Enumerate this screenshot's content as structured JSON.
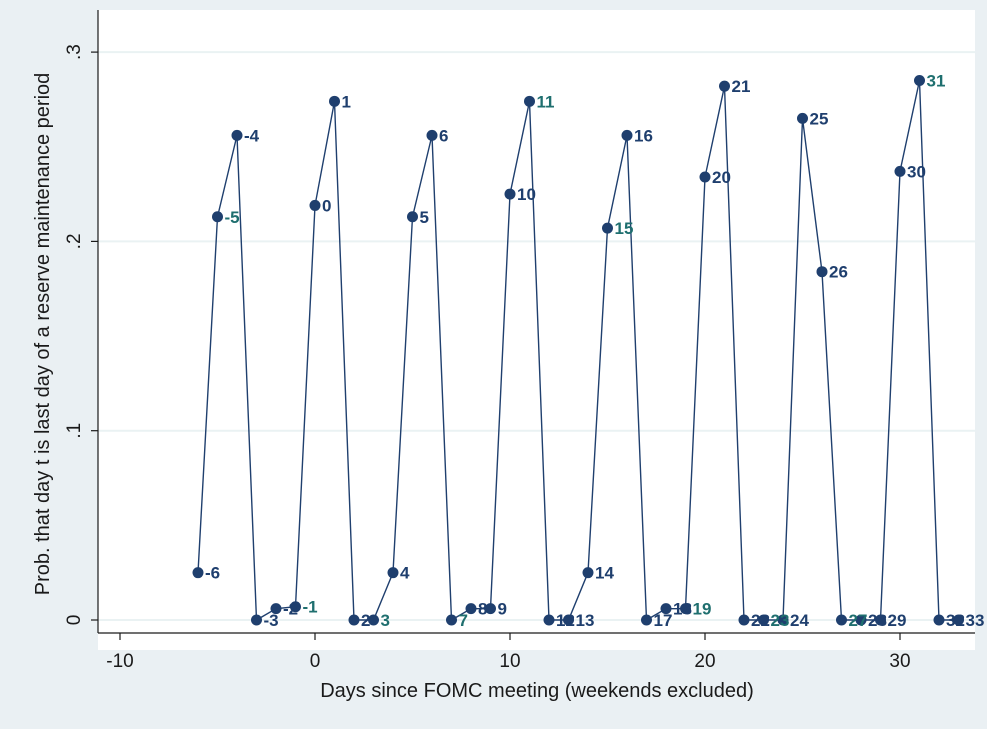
{
  "chart_data": {
    "type": "line",
    "title": "",
    "xlabel": "Days since FOMC meeting (weekends excluded)",
    "ylabel": "Prob. that day t is last day of a reserve maintenance period",
    "xlim": [
      -11,
      34
    ],
    "ylim": [
      -0.005,
      0.3
    ],
    "xticks": [
      -10,
      0,
      10,
      20,
      30
    ],
    "xtick_labels": [
      "-10",
      "0",
      "10",
      "20",
      "30"
    ],
    "yticks": [
      0,
      0.1,
      0.2,
      0.3
    ],
    "ytick_labels": [
      "0",
      ".1",
      ".2",
      ".3"
    ],
    "grid": "horizontal",
    "series": [
      {
        "marker": "circle",
        "color": "#1f3f6e",
        "points": [
          {
            "x": -6,
            "y": 0.025,
            "label": "-6"
          },
          {
            "x": -5,
            "y": 0.213,
            "label": "-5"
          },
          {
            "x": -4,
            "y": 0.256,
            "label": "-4"
          },
          {
            "x": -3,
            "y": 0.0,
            "label": "-3"
          },
          {
            "x": -2,
            "y": 0.006,
            "label": "-2"
          },
          {
            "x": -1,
            "y": 0.007,
            "label": "-1"
          },
          {
            "x": 0,
            "y": 0.219,
            "label": "0"
          },
          {
            "x": 1,
            "y": 0.274,
            "label": "1"
          },
          {
            "x": 2,
            "y": 0.0,
            "label": "2"
          },
          {
            "x": 3,
            "y": 0.0,
            "label": "3"
          },
          {
            "x": 4,
            "y": 0.025,
            "label": "4"
          },
          {
            "x": 5,
            "y": 0.213,
            "label": "5"
          },
          {
            "x": 6,
            "y": 0.256,
            "label": "6"
          },
          {
            "x": 7,
            "y": 0.0,
            "label": "7"
          },
          {
            "x": 8,
            "y": 0.006,
            "label": "8"
          },
          {
            "x": 9,
            "y": 0.006,
            "label": "9"
          },
          {
            "x": 10,
            "y": 0.225,
            "label": "10"
          },
          {
            "x": 11,
            "y": 0.274,
            "label": "11"
          },
          {
            "x": 12,
            "y": 0.0,
            "label": "12"
          },
          {
            "x": 13,
            "y": 0.0,
            "label": "13"
          },
          {
            "x": 14,
            "y": 0.025,
            "label": "14"
          },
          {
            "x": 15,
            "y": 0.207,
            "label": "15"
          },
          {
            "x": 16,
            "y": 0.256,
            "label": "16"
          },
          {
            "x": 17,
            "y": 0.0,
            "label": "17"
          },
          {
            "x": 18,
            "y": 0.006,
            "label": "18"
          },
          {
            "x": 19,
            "y": 0.006,
            "label": "19"
          },
          {
            "x": 20,
            "y": 0.234,
            "label": "20"
          },
          {
            "x": 21,
            "y": 0.282,
            "label": "21"
          },
          {
            "x": 22,
            "y": 0.0,
            "label": "22"
          },
          {
            "x": 23,
            "y": 0.0,
            "label": "23"
          },
          {
            "x": 24,
            "y": 0.0,
            "label": "24"
          },
          {
            "x": 25,
            "y": 0.265,
            "label": "25"
          },
          {
            "x": 26,
            "y": 0.184,
            "label": "26"
          },
          {
            "x": 27,
            "y": 0.0,
            "label": "27"
          },
          {
            "x": 28,
            "y": 0.0,
            "label": "28"
          },
          {
            "x": 29,
            "y": 0.0,
            "label": "29"
          },
          {
            "x": 30,
            "y": 0.237,
            "label": "30"
          },
          {
            "x": 31,
            "y": 0.285,
            "label": "31"
          },
          {
            "x": 32,
            "y": 0.0,
            "label": "32"
          },
          {
            "x": 33,
            "y": 0.0,
            "label": "33"
          }
        ]
      }
    ]
  },
  "colors": {
    "background": "#eaf0f3",
    "plot_background": "#ffffff",
    "gridline": "#eaf2f3",
    "series_line": "#1f3f6e",
    "label_navy": "#1f3f6e",
    "label_teal": "#1f6f6f"
  }
}
